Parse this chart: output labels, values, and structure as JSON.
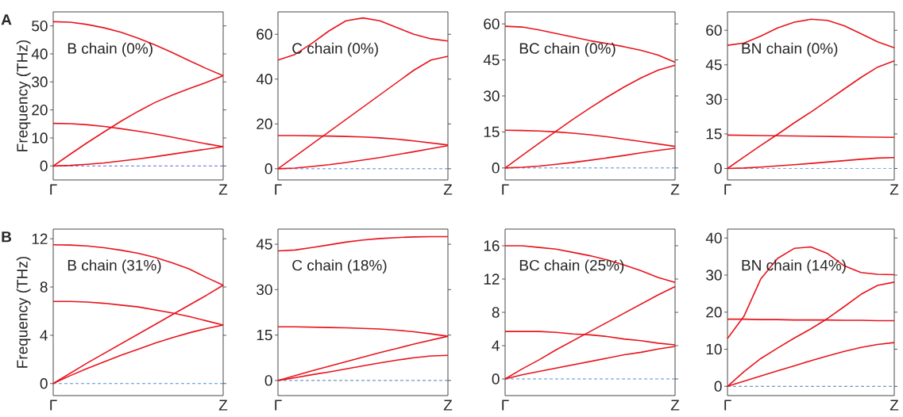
{
  "chart_data": [
    {
      "type": "line",
      "title": "A",
      "ylabel": "Frequency (THz)",
      "annotations": [
        "B chain (0%)"
      ],
      "categories": [
        "Γ",
        null,
        null,
        null,
        null,
        null,
        null,
        null,
        null,
        null,
        "Z"
      ],
      "ylim": [
        -5,
        55
      ],
      "yticks": [
        0,
        10,
        20,
        30,
        40,
        50
      ],
      "ref_lines": [
        {
          "axis": "y",
          "value": 0,
          "color": "#5b5bd6",
          "line_style": "dashed"
        }
      ],
      "series": [
        {
          "color": "#e8141c",
          "values": [
            51.5,
            51.3,
            50.5,
            49.3,
            47.7,
            45.6,
            43.2,
            40.5,
            37.6,
            34.8,
            32.2
          ]
        },
        {
          "color": "#e8141c",
          "values": [
            0,
            4.2,
            8.3,
            12.2,
            16,
            19.5,
            22.7,
            25.3,
            27.6,
            29.8,
            32.2
          ]
        },
        {
          "color": "#e8141c",
          "values": [
            15.2,
            15.1,
            14.7,
            14.1,
            13.3,
            12.4,
            11.4,
            10.3,
            9.1,
            7.9,
            6.9
          ]
        },
        {
          "color": "#e8141c",
          "values": [
            0,
            0.2,
            0.6,
            1.1,
            1.8,
            2.5,
            3.3,
            4.2,
            5.1,
            6,
            6.9
          ]
        }
      ]
    },
    {
      "type": "line",
      "annotations": [
        "C chain (0%)"
      ],
      "categories": [
        "Γ",
        null,
        null,
        null,
        null,
        null,
        null,
        null,
        null,
        null,
        "Z"
      ],
      "ylim": [
        -5,
        70
      ],
      "yticks": [
        0,
        20,
        40,
        60
      ],
      "ref_lines": [
        {
          "axis": "y",
          "value": 0,
          "color": "#3f83d4",
          "line_style": "dashed"
        }
      ],
      "series": [
        {
          "color": "#e8141c",
          "values": [
            48.5,
            51,
            56,
            61.5,
            66,
            67.3,
            66,
            63,
            60,
            58,
            57
          ]
        },
        {
          "color": "#e8141c",
          "values": [
            0,
            5.5,
            11,
            16.5,
            22,
            27.5,
            33,
            38.5,
            44,
            48.5,
            50.2
          ]
        },
        {
          "color": "#e8141c",
          "values": [
            14.8,
            14.8,
            14.7,
            14.6,
            14.4,
            14.2,
            13.8,
            13.2,
            12.4,
            11.5,
            10.6
          ]
        },
        {
          "color": "#e8141c",
          "values": [
            0,
            0.3,
            1,
            1.8,
            2.8,
            3.9,
            5,
            6.3,
            7.6,
            9,
            10.3
          ]
        }
      ]
    },
    {
      "type": "line",
      "annotations": [
        "BC chain (0%)"
      ],
      "categories": [
        "Γ",
        null,
        null,
        null,
        null,
        null,
        null,
        null,
        null,
        null,
        "Z"
      ],
      "ylim": [
        -5,
        65
      ],
      "yticks": [
        0,
        15,
        30,
        45,
        60
      ],
      "ref_lines": [
        {
          "axis": "y",
          "value": 0,
          "color": "#3f83d4",
          "line_style": "dashed"
        }
      ],
      "series": [
        {
          "color": "#e8141c",
          "values": [
            59,
            58.7,
            57.5,
            56,
            54.5,
            53,
            51.8,
            50.5,
            49,
            47,
            44
          ]
        },
        {
          "color": "#e8141c",
          "values": [
            0,
            5.2,
            10.3,
            15.3,
            20.3,
            25,
            29.5,
            33.7,
            37.5,
            40.7,
            42.8
          ]
        },
        {
          "color": "#e8141c",
          "values": [
            15.7,
            15.6,
            15.4,
            15,
            14.5,
            13.8,
            13,
            12,
            11,
            10,
            9
          ]
        },
        {
          "color": "#e8141c",
          "values": [
            0,
            0.3,
            0.8,
            1.5,
            2.3,
            3.2,
            4.2,
            5.2,
            6.3,
            7.3,
            8.2
          ]
        }
      ]
    },
    {
      "type": "line",
      "annotations": [
        "BN chain (0%)"
      ],
      "categories": [
        "Γ",
        null,
        null,
        null,
        null,
        null,
        null,
        null,
        null,
        null,
        "Z"
      ],
      "ylim": [
        -5,
        68
      ],
      "yticks": [
        0,
        15,
        30,
        45,
        60
      ],
      "ref_lines": [
        {
          "axis": "y",
          "value": 0,
          "color": "#6fa0dc",
          "line_style": "dashed"
        }
      ],
      "series": [
        {
          "color": "#e8141c",
          "values": [
            53.5,
            54.5,
            57.5,
            61,
            63.5,
            64.8,
            64.3,
            62,
            58.5,
            55,
            52.4
          ]
        },
        {
          "color": "#e8141c",
          "values": [
            0,
            5,
            10,
            14.8,
            19.8,
            24.5,
            29.5,
            34.5,
            39.5,
            44,
            46.7
          ]
        },
        {
          "color": "#e8141c",
          "values": [
            14.5,
            14.4,
            14.3,
            14.2,
            14.1,
            14,
            13.9,
            13.8,
            13.7,
            13.6,
            13.5
          ]
        },
        {
          "color": "#e8141c",
          "values": [
            0,
            0.2,
            0.6,
            1.1,
            1.6,
            2.2,
            2.8,
            3.4,
            4,
            4.5,
            4.7
          ]
        }
      ]
    },
    {
      "type": "line",
      "title": "B",
      "ylabel": "Frequency (THz)",
      "annotations": [
        "B chain (31%)"
      ],
      "categories": [
        "Γ",
        null,
        null,
        null,
        null,
        null,
        null,
        null,
        null,
        null,
        "Z"
      ],
      "ylim": [
        -1,
        12.8
      ],
      "yticks": [
        0,
        4,
        8,
        12
      ],
      "ref_lines": [
        {
          "axis": "y",
          "value": 0,
          "color": "#3f83d4",
          "line_style": "dashed"
        }
      ],
      "series": [
        {
          "color": "#e8141c",
          "values": [
            11.5,
            11.48,
            11.4,
            11.25,
            11.05,
            10.8,
            10.45,
            10,
            9.5,
            8.8,
            8.15
          ]
        },
        {
          "color": "#e8141c",
          "values": [
            0,
            0.85,
            1.7,
            2.5,
            3.3,
            4.1,
            4.9,
            5.7,
            6.5,
            7.3,
            8.15
          ]
        },
        {
          "color": "#e8141c",
          "values": [
            6.8,
            6.8,
            6.75,
            6.65,
            6.5,
            6.35,
            6.1,
            5.85,
            5.55,
            5.2,
            4.85
          ]
        },
        {
          "color": "#e8141c",
          "values": [
            0,
            0.65,
            1.25,
            1.8,
            2.35,
            2.85,
            3.35,
            3.8,
            4.2,
            4.55,
            4.85
          ]
        }
      ]
    },
    {
      "type": "line",
      "annotations": [
        "C chain (18%)"
      ],
      "categories": [
        "Γ",
        null,
        null,
        null,
        null,
        null,
        null,
        null,
        null,
        null,
        "Z"
      ],
      "ylim": [
        -5,
        50
      ],
      "yticks": [
        0,
        15,
        30,
        45
      ],
      "ref_lines": [
        {
          "axis": "y",
          "value": 0,
          "color": "#3a6fb0",
          "line_style": "dashed"
        }
      ],
      "series": [
        {
          "color": "#e8141c",
          "values": [
            42.8,
            43.1,
            43.9,
            44.8,
            45.7,
            46.4,
            46.9,
            47.2,
            47.4,
            47.5,
            47.5
          ]
        },
        {
          "color": "#e8141c",
          "values": [
            17.7,
            17.7,
            17.6,
            17.5,
            17.4,
            17.2,
            17,
            16.6,
            16.1,
            15.4,
            14.6
          ]
        },
        {
          "color": "#e8141c",
          "values": [
            0,
            1.6,
            3.2,
            4.7,
            6.2,
            7.7,
            9.2,
            10.6,
            12,
            13.3,
            14.6
          ]
        },
        {
          "color": "#e8141c",
          "values": [
            0,
            0.9,
            1.9,
            2.8,
            3.8,
            4.8,
            5.8,
            6.7,
            7.5,
            8.1,
            8.3
          ]
        }
      ]
    },
    {
      "type": "line",
      "annotations": [
        "BC chain (25%)"
      ],
      "categories": [
        "Γ",
        null,
        null,
        null,
        null,
        null,
        null,
        null,
        null,
        null,
        "Z"
      ],
      "ylim": [
        -2,
        18
      ],
      "yticks": [
        0,
        4,
        8,
        12,
        16
      ],
      "ref_lines": [
        {
          "axis": "y",
          "value": 0,
          "color": "#3f83d4",
          "line_style": "dashed"
        }
      ],
      "series": [
        {
          "color": "#e8141c",
          "values": [
            16,
            16,
            15.8,
            15.6,
            15.2,
            14.8,
            14.3,
            13.7,
            13,
            12.2,
            11.6
          ]
        },
        {
          "color": "#e8141c",
          "values": [
            0,
            1.2,
            2.3,
            3.5,
            4.6,
            5.7,
            6.8,
            7.9,
            9,
            10.1,
            11.1
          ]
        },
        {
          "color": "#e8141c",
          "values": [
            5.7,
            5.7,
            5.7,
            5.6,
            5.4,
            5.3,
            5.1,
            4.8,
            4.6,
            4.3,
            4.1
          ]
        },
        {
          "color": "#e8141c",
          "values": [
            0,
            0.5,
            0.9,
            1.3,
            1.7,
            2.1,
            2.5,
            2.9,
            3.2,
            3.6,
            3.9
          ]
        }
      ]
    },
    {
      "type": "line",
      "annotations": [
        "BN chain (14%)"
      ],
      "categories": [
        "Γ",
        null,
        null,
        null,
        null,
        null,
        null,
        null,
        null,
        null,
        "Z"
      ],
      "ylim": [
        -2.5,
        42.4
      ],
      "yticks": [
        0,
        10,
        20,
        30,
        40
      ],
      "ref_lines": [
        {
          "axis": "y",
          "value": 0,
          "color": "#3f6fa8",
          "line_style": "dashed"
        }
      ],
      "series": [
        {
          "color": "#e8141c",
          "values": [
            12.9,
            19,
            29,
            34.5,
            37.2,
            37.6,
            35.8,
            32.5,
            30.7,
            30.2,
            30.1
          ]
        },
        {
          "color": "#e8141c",
          "values": [
            0,
            4,
            7.5,
            10.3,
            13,
            15.5,
            18.3,
            21.5,
            24.8,
            27.2,
            28.1
          ]
        },
        {
          "color": "#e8141c",
          "values": [
            18.1,
            18.1,
            18,
            18,
            17.9,
            17.9,
            17.9,
            17.8,
            17.8,
            17.7,
            17.7
          ]
        },
        {
          "color": "#e8141c",
          "values": [
            0,
            1.4,
            2.8,
            4.2,
            5.5,
            6.9,
            8.2,
            9.4,
            10.5,
            11.3,
            11.8
          ]
        }
      ]
    }
  ]
}
